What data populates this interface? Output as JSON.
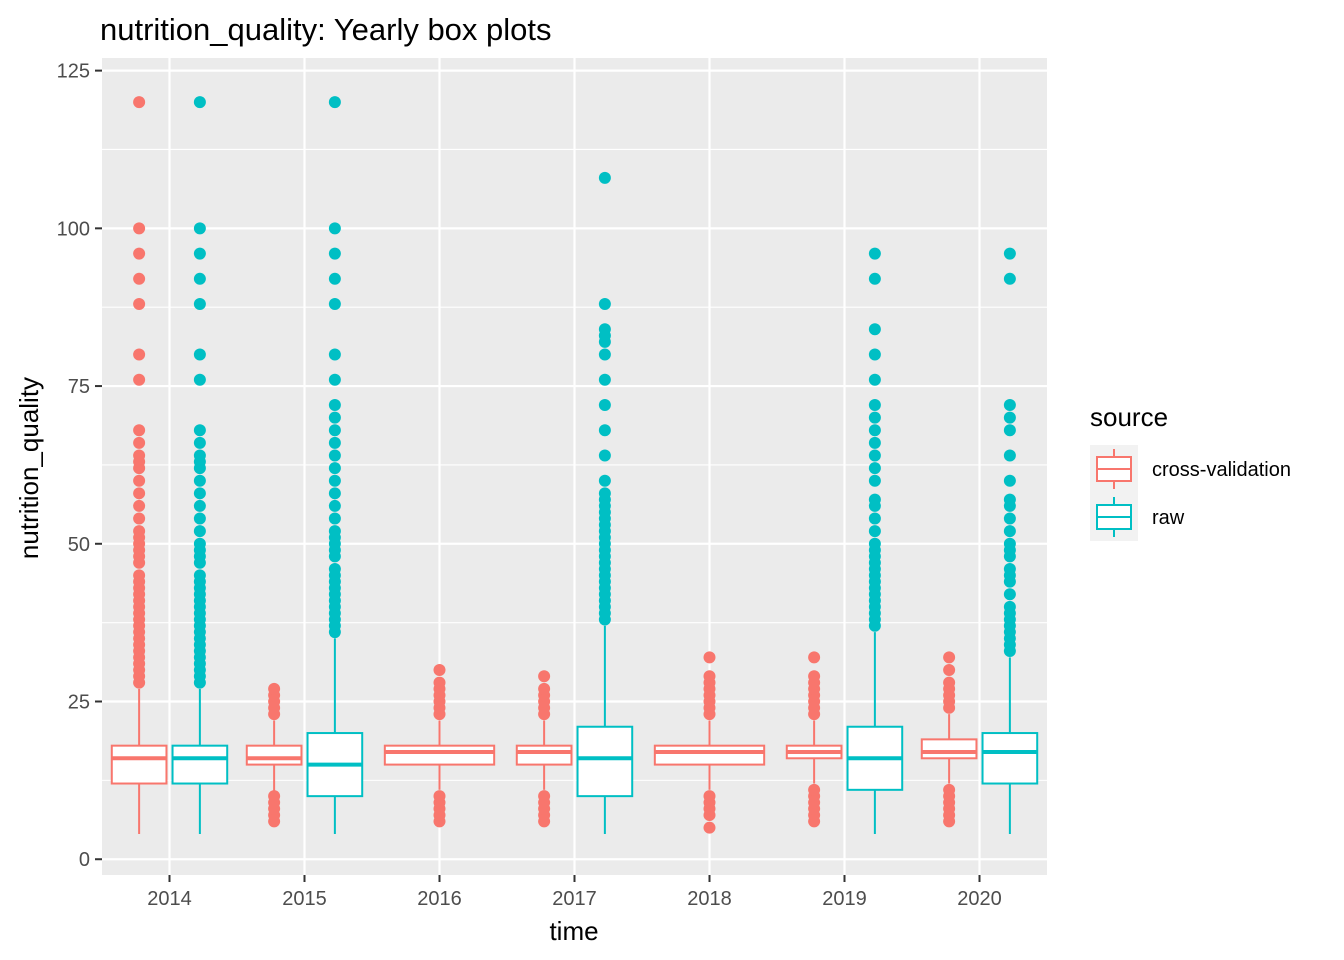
{
  "chart_data": {
    "type": "box",
    "title": "nutrition_quality: Yearly box plots",
    "xlabel": "time",
    "ylabel": "nutrition_quality",
    "ylim": [
      -2.5,
      127
    ],
    "yticks": [
      0,
      25,
      50,
      75,
      100,
      125
    ],
    "categories": [
      "2014",
      "2015",
      "2016",
      "2017",
      "2018",
      "2019",
      "2020"
    ],
    "grid": true,
    "legend": {
      "title": "source",
      "placement": "right",
      "entries": [
        "cross-validation",
        "raw"
      ]
    },
    "series": [
      {
        "name": "cross-validation",
        "color": "#F8766D",
        "boxes": [
          {
            "x": "2014",
            "min": 4,
            "q1": 12,
            "median": 16,
            "q3": 18,
            "max": 27,
            "outliers": [
              28,
              29,
              30,
              31,
              32,
              33,
              34,
              35,
              36,
              37,
              38,
              39,
              40,
              41,
              42,
              43,
              44,
              45,
              47,
              48,
              49,
              50,
              51,
              52,
              54,
              56,
              58,
              60,
              62,
              63,
              64,
              66,
              68,
              76,
              80,
              88,
              92,
              96,
              100,
              120
            ]
          },
          {
            "x": "2015",
            "min": 6,
            "q1": 15,
            "median": 16,
            "q3": 18,
            "max": 22,
            "outliers": [
              6,
              7,
              8,
              9,
              10,
              23,
              24,
              25,
              26,
              27
            ]
          },
          {
            "x": "2016",
            "min": 11,
            "q1": 15,
            "median": 17,
            "q3": 18,
            "max": 22,
            "outliers": [
              6,
              7,
              8,
              9,
              10,
              23,
              24,
              25,
              26,
              27,
              28,
              30
            ]
          },
          {
            "x": "2017",
            "min": 11,
            "q1": 15,
            "median": 17,
            "q3": 18,
            "max": 22,
            "outliers": [
              6,
              7,
              8,
              9,
              10,
              23,
              24,
              25,
              26,
              27,
              29
            ]
          },
          {
            "x": "2018",
            "min": 11,
            "q1": 15,
            "median": 17,
            "q3": 18,
            "max": 22,
            "outliers": [
              5,
              7,
              8,
              9,
              10,
              23,
              24,
              25,
              26,
              27,
              28,
              29,
              32
            ]
          },
          {
            "x": "2019",
            "min": 12,
            "q1": 16,
            "median": 17,
            "q3": 18,
            "max": 22,
            "outliers": [
              6,
              7,
              8,
              9,
              10,
              11,
              23,
              24,
              25,
              26,
              27,
              28,
              29,
              32
            ]
          },
          {
            "x": "2020",
            "min": 12,
            "q1": 16,
            "median": 17,
            "q3": 19,
            "max": 23,
            "outliers": [
              6,
              7,
              8,
              9,
              10,
              11,
              24,
              25,
              26,
              27,
              28,
              30,
              32
            ]
          }
        ]
      },
      {
        "name": "raw",
        "color": "#00BFC4",
        "boxes": [
          {
            "x": "2014",
            "min": 4,
            "q1": 12,
            "median": 16,
            "q3": 18,
            "max": 27,
            "outliers": [
              28,
              29,
              30,
              31,
              32,
              33,
              34,
              35,
              36,
              37,
              38,
              39,
              40,
              41,
              42,
              43,
              44,
              45,
              47,
              48,
              49,
              50,
              52,
              54,
              56,
              58,
              60,
              62,
              63,
              64,
              66,
              68,
              76,
              80,
              88,
              92,
              96,
              100,
              120
            ]
          },
          {
            "x": "2015",
            "min": 4,
            "q1": 10,
            "median": 15,
            "q3": 20,
            "max": 35,
            "outliers": [
              36,
              37,
              38,
              39,
              40,
              41,
              42,
              43,
              44,
              45,
              46,
              48,
              49,
              50,
              51,
              52,
              54,
              56,
              58,
              60,
              62,
              64,
              66,
              68,
              70,
              72,
              76,
              80,
              88,
              92,
              96,
              100,
              120
            ]
          },
          {
            "x": "2017",
            "min": 4,
            "q1": 10,
            "median": 16,
            "q3": 21,
            "max": 37,
            "outliers": [
              38,
              39,
              40,
              41,
              42,
              43,
              44,
              45,
              46,
              47,
              48,
              49,
              50,
              51,
              52,
              53,
              54,
              55,
              56,
              57,
              58,
              60,
              64,
              68,
              72,
              76,
              80,
              82,
              83,
              84,
              88,
              108
            ]
          },
          {
            "x": "2019",
            "min": 4,
            "q1": 11,
            "median": 16,
            "q3": 21,
            "max": 36,
            "outliers": [
              37,
              38,
              39,
              40,
              41,
              42,
              43,
              44,
              45,
              46,
              47,
              48,
              49,
              50,
              52,
              54,
              56,
              57,
              60,
              62,
              64,
              66,
              68,
              70,
              72,
              76,
              80,
              84,
              92,
              96
            ]
          },
          {
            "x": "2020",
            "min": 4,
            "q1": 12,
            "median": 17,
            "q3": 20,
            "max": 32,
            "outliers": [
              33,
              34,
              35,
              36,
              37,
              38,
              39,
              40,
              42,
              44,
              45,
              46,
              48,
              49,
              50,
              52,
              54,
              56,
              57,
              60,
              64,
              68,
              70,
              72,
              92,
              96
            ]
          }
        ]
      }
    ]
  }
}
